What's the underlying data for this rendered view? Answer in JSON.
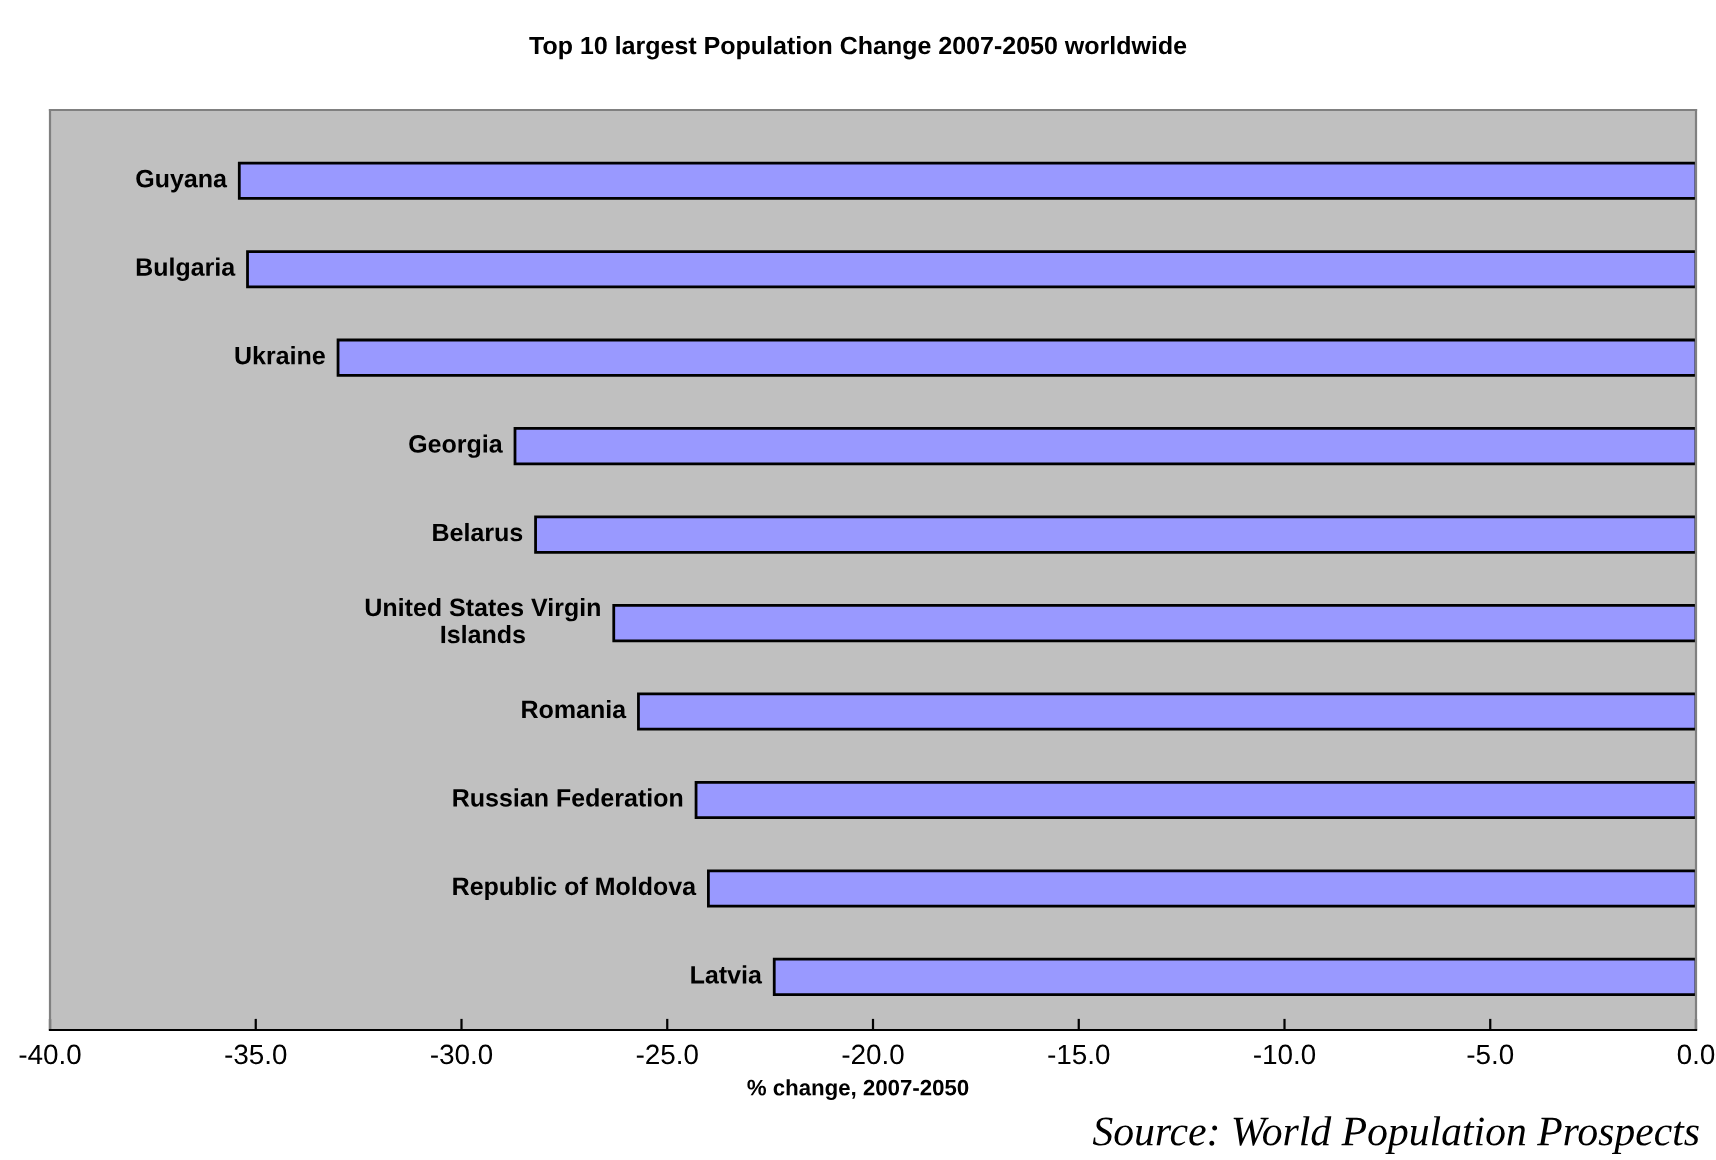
{
  "chart_data": {
    "type": "bar",
    "orientation": "horizontal",
    "title": "Top 10 largest Population Change 2007-2050 worldwide",
    "xlabel": "% change, 2007-2050",
    "categories": [
      "Guyana",
      "Bulgaria",
      "Ukraine",
      "Georgia",
      "Belarus",
      "United States Virgin\nIslands",
      "Romania",
      "Russian Federation",
      "Republic of Moldova",
      "Latvia"
    ],
    "values": [
      -35.4,
      -35.2,
      -33.0,
      -28.7,
      -28.2,
      -26.3,
      -25.7,
      -24.3,
      -24.0,
      -22.4
    ],
    "color": "#9999ff",
    "xlim": [
      -40,
      0
    ],
    "xticks": [
      {
        "value": -40,
        "label": "-40.0"
      },
      {
        "value": -35,
        "label": "-35.0"
      },
      {
        "value": -30,
        "label": "-30.0"
      },
      {
        "value": -25,
        "label": "-25.0"
      },
      {
        "value": -20,
        "label": "-20.0"
      },
      {
        "value": -15,
        "label": "-15.0"
      },
      {
        "value": -10,
        "label": "-10.0"
      },
      {
        "value": -5,
        "label": "-5.0"
      },
      {
        "value": 0,
        "label": "0.0"
      }
    ],
    "grid": false,
    "legend": false,
    "annotations": [
      "Source: World Population Prospects"
    ]
  }
}
